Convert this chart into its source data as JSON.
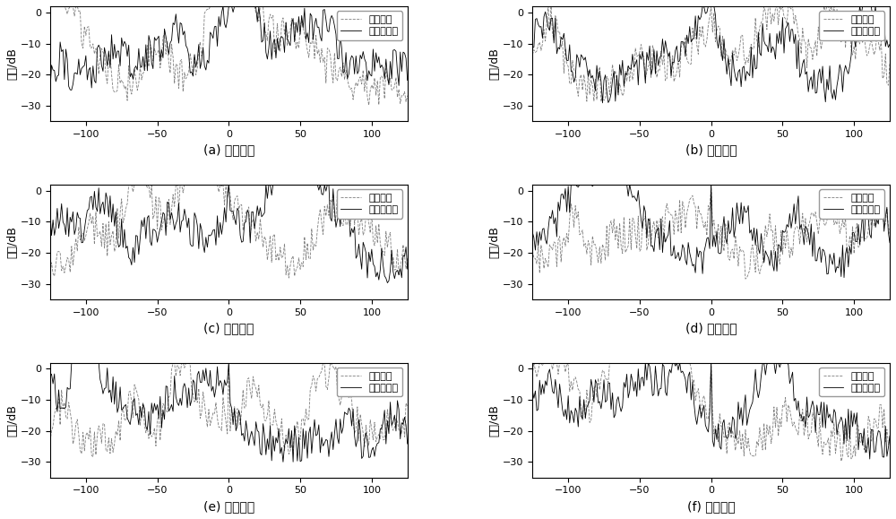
{
  "nrows": 3,
  "ncols": 2,
  "xlim": [
    -125,
    125
  ],
  "ylim": [
    -35,
    2
  ],
  "yticks": [
    0,
    -10,
    -20,
    -30
  ],
  "xticks": [
    -100,
    -50,
    0,
    50,
    100
  ],
  "ylabel": "幅度/dB",
  "xlabel": "延迟单元",
  "labels": [
    "(a)",
    "(b)",
    "(c)",
    "(d)",
    "(e)",
    "(f)"
  ],
  "legend1": "本发明方法",
  "legend2": "遗传算法",
  "line1_color": "#000000",
  "line2_color": "#808080",
  "seed": 42,
  "n_points": 251,
  "noise_floor": -30,
  "noise_amplitude": 12,
  "spike_height": 0,
  "spike_positions": [
    0,
    0,
    0,
    0,
    0,
    0
  ],
  "figsize": [
    10.0,
    5.79
  ],
  "dpi": 100,
  "subplot_label_fontsize": 10,
  "axis_label_fontsize": 9,
  "legend_fontsize": 8,
  "tick_fontsize": 8
}
